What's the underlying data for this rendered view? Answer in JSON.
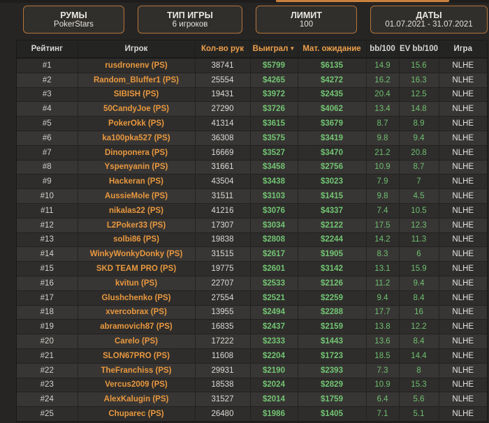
{
  "page": {
    "accent_orange": "#c8803c",
    "background": "#262524",
    "positive_green": "#72c473",
    "name_orange": "#e9983f"
  },
  "filters": [
    {
      "label": "РУМЫ",
      "value": "PokerStars"
    },
    {
      "label": "ТИП ИГРЫ",
      "value": "6 игроков"
    },
    {
      "label": "ЛИМИТ",
      "value": "100"
    },
    {
      "label": "ДАТЫ",
      "value": "01.07.2021 - 31.07.2021"
    }
  ],
  "table": {
    "sort_indicator": "▼",
    "columns": [
      {
        "key": "rank",
        "label": "Рейтинг"
      },
      {
        "key": "player",
        "label": "Игрок"
      },
      {
        "key": "hands",
        "label": "Кол-во рук"
      },
      {
        "key": "won",
        "label": "Выиграл",
        "sorted": "desc"
      },
      {
        "key": "expectation",
        "label": "Мат. ожидание"
      },
      {
        "key": "bb100",
        "label": "bb/100"
      },
      {
        "key": "ev_bb100",
        "label": "EV bb/100"
      },
      {
        "key": "game",
        "label": "Игра"
      }
    ],
    "rows": [
      {
        "rank": "#1",
        "player": "rusdronenv (PS)",
        "hands": "38741",
        "won": "$5799",
        "expectation": "$6135",
        "bb100": "14.9",
        "ev_bb100": "15.6",
        "game": "NLHE"
      },
      {
        "rank": "#2",
        "player": "Random_Bluffer1 (PS)",
        "hands": "25554",
        "won": "$4265",
        "expectation": "$4272",
        "bb100": "16.2",
        "ev_bb100": "16.3",
        "game": "NLHE"
      },
      {
        "rank": "#3",
        "player": "SIBISH (PS)",
        "hands": "19431",
        "won": "$3972",
        "expectation": "$2435",
        "bb100": "20.4",
        "ev_bb100": "12.5",
        "game": "NLHE"
      },
      {
        "rank": "#4",
        "player": "50CandyJoe (PS)",
        "hands": "27290",
        "won": "$3726",
        "expectation": "$4062",
        "bb100": "13.4",
        "ev_bb100": "14.8",
        "game": "NLHE"
      },
      {
        "rank": "#5",
        "player": "PokerOkk (PS)",
        "hands": "41314",
        "won": "$3615",
        "expectation": "$3679",
        "bb100": "8.7",
        "ev_bb100": "8.9",
        "game": "NLHE"
      },
      {
        "rank": "#6",
        "player": "ka100pka527 (PS)",
        "hands": "36308",
        "won": "$3575",
        "expectation": "$3419",
        "bb100": "9.8",
        "ev_bb100": "9.4",
        "game": "NLHE"
      },
      {
        "rank": "#7",
        "player": "Dinoponera (PS)",
        "hands": "16669",
        "won": "$3527",
        "expectation": "$3470",
        "bb100": "21.2",
        "ev_bb100": "20.8",
        "game": "NLHE"
      },
      {
        "rank": "#8",
        "player": "Yspenyanin (PS)",
        "hands": "31661",
        "won": "$3458",
        "expectation": "$2756",
        "bb100": "10.9",
        "ev_bb100": "8.7",
        "game": "NLHE"
      },
      {
        "rank": "#9",
        "player": "Hackeran (PS)",
        "hands": "43504",
        "won": "$3438",
        "expectation": "$3023",
        "bb100": "7.9",
        "ev_bb100": "7",
        "game": "NLHE"
      },
      {
        "rank": "#10",
        "player": "AussieMole (PS)",
        "hands": "31511",
        "won": "$3103",
        "expectation": "$1415",
        "bb100": "9.8",
        "ev_bb100": "4.5",
        "game": "NLHE"
      },
      {
        "rank": "#11",
        "player": "nikalas22 (PS)",
        "hands": "41216",
        "won": "$3076",
        "expectation": "$4337",
        "bb100": "7.4",
        "ev_bb100": "10.5",
        "game": "NLHE"
      },
      {
        "rank": "#12",
        "player": "L2Poker33 (PS)",
        "hands": "17307",
        "won": "$3034",
        "expectation": "$2122",
        "bb100": "17.5",
        "ev_bb100": "12.3",
        "game": "NLHE"
      },
      {
        "rank": "#13",
        "player": "solbi86 (PS)",
        "hands": "19838",
        "won": "$2808",
        "expectation": "$2244",
        "bb100": "14.2",
        "ev_bb100": "11.3",
        "game": "NLHE"
      },
      {
        "rank": "#14",
        "player": "WinkyWonkyDonky (PS)",
        "hands": "31515",
        "won": "$2617",
        "expectation": "$1905",
        "bb100": "8.3",
        "ev_bb100": "6",
        "game": "NLHE"
      },
      {
        "rank": "#15",
        "player": "SKD TEAM PRO (PS)",
        "hands": "19775",
        "won": "$2601",
        "expectation": "$3142",
        "bb100": "13.1",
        "ev_bb100": "15.9",
        "game": "NLHE"
      },
      {
        "rank": "#16",
        "player": "kvitun (PS)",
        "hands": "22707",
        "won": "$2533",
        "expectation": "$2126",
        "bb100": "11.2",
        "ev_bb100": "9.4",
        "game": "NLHE"
      },
      {
        "rank": "#17",
        "player": "Glushchenko (PS)",
        "hands": "27554",
        "won": "$2521",
        "expectation": "$2259",
        "bb100": "9.4",
        "ev_bb100": "8.4",
        "game": "NLHE"
      },
      {
        "rank": "#18",
        "player": "xvercobrax (PS)",
        "hands": "13955",
        "won": "$2494",
        "expectation": "$2288",
        "bb100": "17.7",
        "ev_bb100": "16",
        "game": "NLHE"
      },
      {
        "rank": "#19",
        "player": "abramovich87 (PS)",
        "hands": "16835",
        "won": "$2437",
        "expectation": "$2159",
        "bb100": "13.8",
        "ev_bb100": "12.2",
        "game": "NLHE"
      },
      {
        "rank": "#20",
        "player": "Carelo (PS)",
        "hands": "17222",
        "won": "$2333",
        "expectation": "$1443",
        "bb100": "13.6",
        "ev_bb100": "8.4",
        "game": "NLHE"
      },
      {
        "rank": "#21",
        "player": "SLON67PRO (PS)",
        "hands": "11608",
        "won": "$2204",
        "expectation": "$1723",
        "bb100": "18.5",
        "ev_bb100": "14.4",
        "game": "NLHE"
      },
      {
        "rank": "#22",
        "player": "TheFranchiss (PS)",
        "hands": "29931",
        "won": "$2190",
        "expectation": "$2393",
        "bb100": "7.3",
        "ev_bb100": "8",
        "game": "NLHE"
      },
      {
        "rank": "#23",
        "player": "Vercus2009 (PS)",
        "hands": "18538",
        "won": "$2024",
        "expectation": "$2829",
        "bb100": "10.9",
        "ev_bb100": "15.3",
        "game": "NLHE"
      },
      {
        "rank": "#24",
        "player": "AlexKalugin (PS)",
        "hands": "31527",
        "won": "$2014",
        "expectation": "$1759",
        "bb100": "6.4",
        "ev_bb100": "5.6",
        "game": "NLHE"
      },
      {
        "rank": "#25",
        "player": "Chuparec (PS)",
        "hands": "26480",
        "won": "$1986",
        "expectation": "$1405",
        "bb100": "7.1",
        "ev_bb100": "5.1",
        "game": "NLHE"
      }
    ]
  }
}
